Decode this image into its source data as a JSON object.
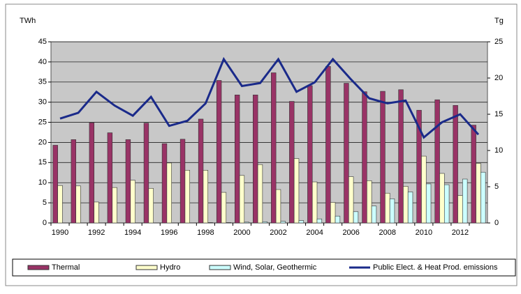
{
  "chart_data": {
    "type": "bar",
    "y_label": "TWh",
    "y2_label": "Tg",
    "categories": [
      "1990",
      null,
      "1992",
      null,
      "1994",
      null,
      "1996",
      null,
      "1998",
      null,
      "2000",
      null,
      "2002",
      null,
      "2004",
      null,
      "2006",
      null,
      "2008",
      null,
      "2010",
      null,
      "2012",
      null
    ],
    "series": [
      {
        "name": "Thermal",
        "color": "#993366",
        "values": [
          19.3,
          20.7,
          24.9,
          22.4,
          20.7,
          24.8,
          19.7,
          20.8,
          25.8,
          35.4,
          31.8,
          31.8,
          37.3,
          30.2,
          34.1,
          38.9,
          34.7,
          32.6,
          32.7,
          33.1,
          28.0,
          30.6,
          29.2,
          24.3
        ]
      },
      {
        "name": "Hydro",
        "color": "#ffffcc",
        "values": [
          9.3,
          9.2,
          5.2,
          8.8,
          10.6,
          8.6,
          14.9,
          13.1,
          13.1,
          7.6,
          11.8,
          14.5,
          8.3,
          16.0,
          10.2,
          5.1,
          11.5,
          10.5,
          7.4,
          9.1,
          16.6,
          12.3,
          6.8,
          14.8
        ]
      },
      {
        "name": "Wind, Solar, Geothermic",
        "color": "#ccffff",
        "values": [
          0,
          0,
          0,
          0,
          0,
          0,
          0,
          0,
          0.1,
          0.1,
          0.2,
          0.3,
          0.4,
          0.6,
          1.0,
          1.7,
          2.8,
          4.2,
          6.0,
          7.7,
          9.7,
          9.5,
          10.9,
          12.6
        ]
      },
      {
        "name": "Public Elect. & Heat Prod. emissions",
        "color": "#1a2a8a",
        "type": "line",
        "axis": "y2",
        "values": [
          14.4,
          15.2,
          18.1,
          16.2,
          14.8,
          17.4,
          13.4,
          14.1,
          16.5,
          22.6,
          18.9,
          19.3,
          22.6,
          18.1,
          19.4,
          22.6,
          19.8,
          17.2,
          16.5,
          16.9,
          11.8,
          13.9,
          15.0,
          12.2
        ]
      }
    ],
    "ylim": [
      0,
      45
    ],
    "yticks": [
      0,
      5,
      10,
      15,
      20,
      25,
      30,
      35,
      40,
      45
    ],
    "y2lim": [
      0,
      25
    ],
    "y2ticks": [
      0,
      5,
      10,
      15,
      20,
      25
    ],
    "grid": true,
    "legend": "bottom"
  }
}
